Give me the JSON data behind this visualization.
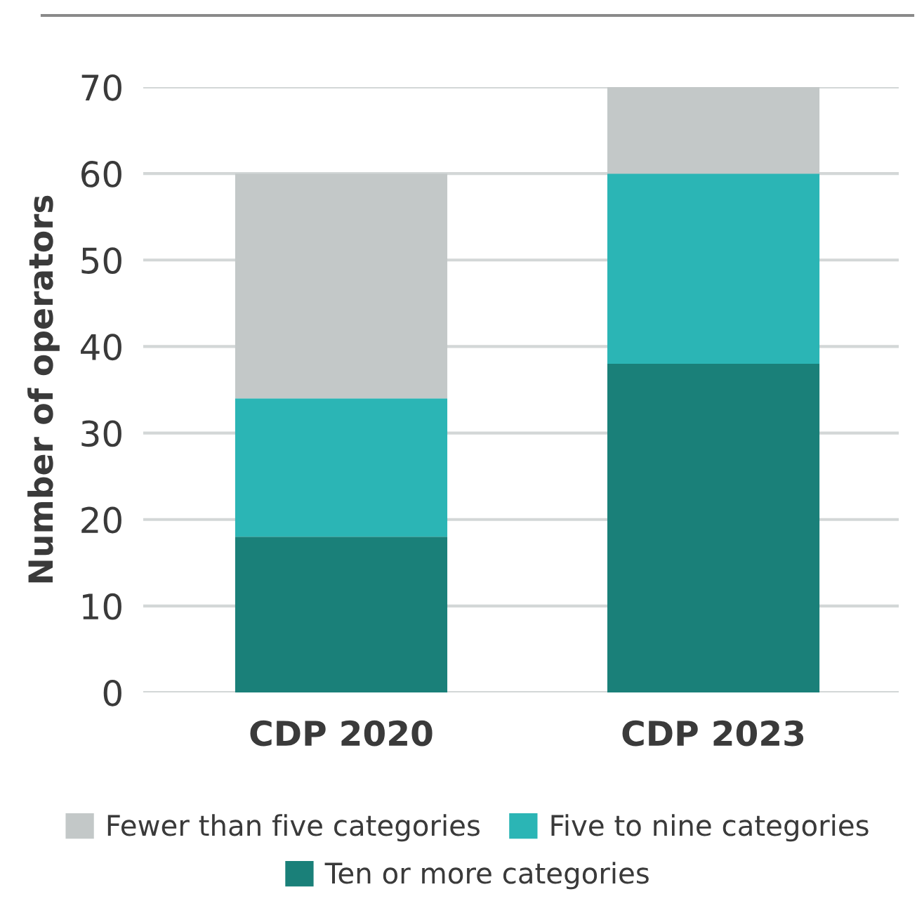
{
  "chart_data": {
    "type": "bar",
    "stacked": true,
    "ylabel": "Number of operators",
    "categories": [
      "CDP 2020",
      "CDP 2023"
    ],
    "series": [
      {
        "name": "Ten or more categories",
        "color": "#1a8079",
        "values": [
          18,
          38
        ]
      },
      {
        "name": "Five to nine categories",
        "color": "#2bb5b5",
        "values": [
          16,
          22
        ]
      },
      {
        "name": "Fewer than five categories",
        "color": "#c3c8c8",
        "values": [
          26,
          10
        ]
      }
    ],
    "ylim": [
      0,
      70
    ],
    "yticks": [
      0,
      10,
      20,
      30,
      40,
      50,
      60,
      70
    ],
    "grid": "y",
    "legend": "bottom"
  }
}
